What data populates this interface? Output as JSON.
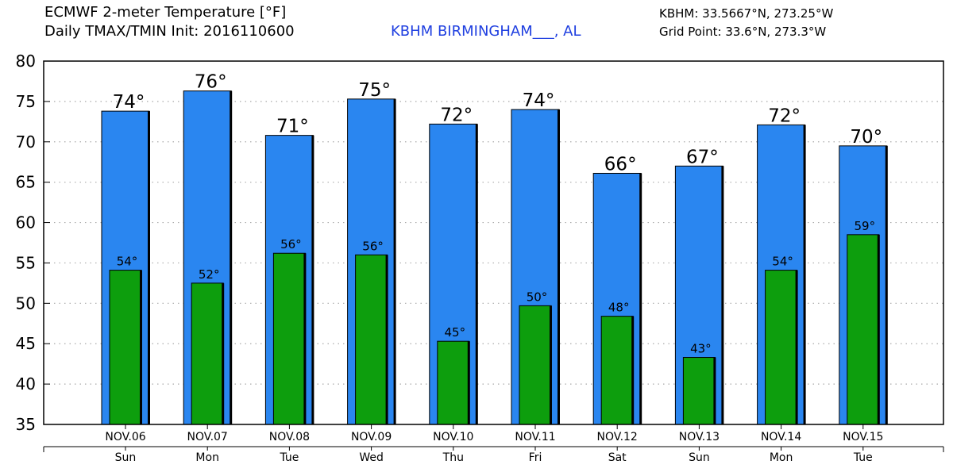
{
  "header": {
    "title_line1": "ECMWF 2-meter Temperature [°F]",
    "title_line2": "Daily TMAX/TMIN Init: 2016110600",
    "station": "KBHM BIRMINGHAM___, AL",
    "station_coords": "KBHM: 33.5667°N, 273.25°W",
    "grid_point": "Grid Point: 33.6°N, 273.3°W"
  },
  "colors": {
    "tmax_bar": "#2a86f0",
    "tmin_bar": "#0d9e0d",
    "station_text": "#1f3fe0",
    "grid": "#aaaaaa"
  },
  "chart_data": {
    "type": "bar",
    "categories": [
      "NOV.06",
      "NOV.07",
      "NOV.08",
      "NOV.09",
      "NOV.10",
      "NOV.11",
      "NOV.12",
      "NOV.13",
      "NOV.14",
      "NOV.15"
    ],
    "weekdays": [
      "Sun",
      "Mon",
      "Tue",
      "Wed",
      "Thu",
      "Fri",
      "Sat",
      "Sun",
      "Mon",
      "Tue"
    ],
    "series": [
      {
        "name": "TMAX",
        "values": [
          73.8,
          76.3,
          70.8,
          75.3,
          72.2,
          74.0,
          66.1,
          67.0,
          72.1,
          69.5
        ],
        "labels": [
          "74°",
          "76°",
          "71°",
          "75°",
          "72°",
          "74°",
          "66°",
          "67°",
          "72°",
          "70°"
        ]
      },
      {
        "name": "TMIN",
        "values": [
          54.1,
          52.5,
          56.2,
          56.0,
          45.3,
          49.7,
          48.4,
          43.3,
          54.1,
          58.5
        ],
        "labels": [
          "54°",
          "52°",
          "56°",
          "56°",
          "45°",
          "50°",
          "48°",
          "43°",
          "54°",
          "59°"
        ]
      }
    ],
    "ylim": [
      35,
      80
    ],
    "yticks": [
      35,
      40,
      45,
      50,
      55,
      60,
      65,
      70,
      75,
      80
    ],
    "grid": true,
    "legend": "none"
  }
}
